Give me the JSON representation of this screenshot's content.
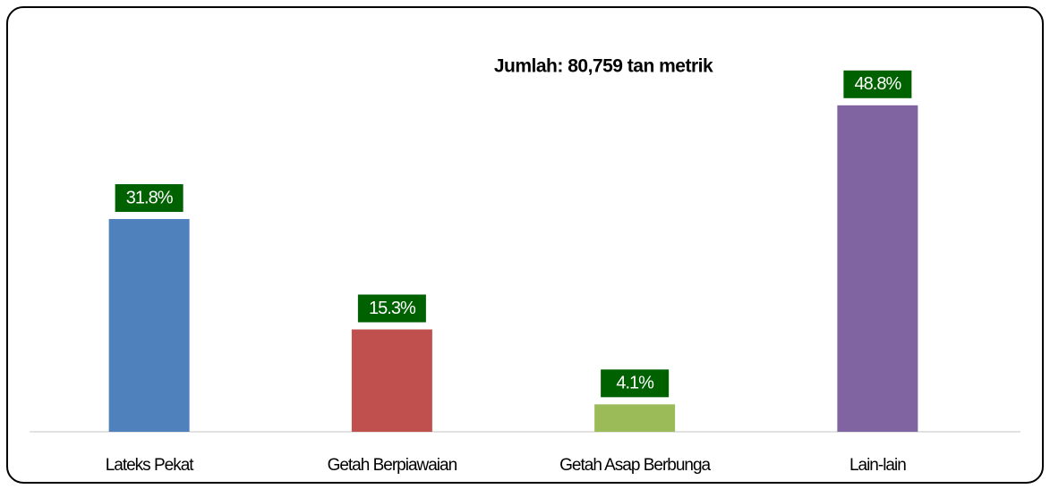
{
  "chart_data": {
    "type": "bar",
    "title": "Jumlah: 80,759 tan metrik",
    "categories": [
      "Lateks Pekat",
      "Getah Berpiawaian",
      "Getah Asap Berbunga",
      "Lain-lain"
    ],
    "values": [
      31.8,
      15.3,
      4.1,
      48.8
    ],
    "value_labels": [
      "31.8%",
      "15.3%",
      "4.1%",
      "48.8%"
    ],
    "colors": [
      "#4f81bd",
      "#c0504d",
      "#9bbb59",
      "#8064a2"
    ],
    "label_color": "#006100",
    "ylim": [
      0,
      60
    ]
  }
}
